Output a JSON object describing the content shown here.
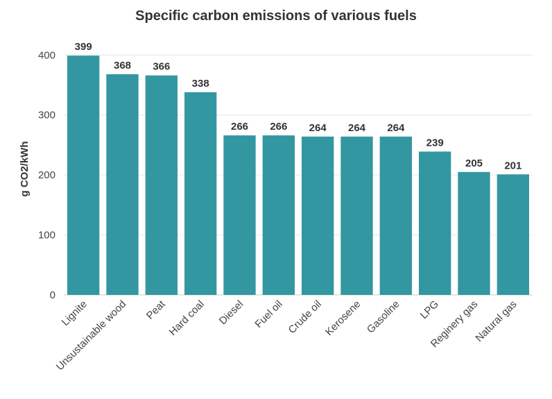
{
  "chart_data": {
    "type": "bar",
    "title": "Specific carbon emissions of various fuels",
    "xlabel": "",
    "ylabel": "g CO2/kWh",
    "ylim": [
      0,
      420
    ],
    "yticks": [
      0,
      100,
      200,
      300,
      400
    ],
    "grid": true,
    "bar_color": "#3397a1",
    "categories": [
      "Lignite",
      "Unsustainable wood",
      "Peat",
      "Hard coal",
      "Diesel",
      "Fuel oil",
      "Crude oil",
      "Kerosene",
      "Gasoline",
      "LPG",
      "Reginery gas",
      "Natural gas"
    ],
    "values": [
      399,
      368,
      366,
      338,
      266,
      266,
      264,
      264,
      264,
      239,
      205,
      201
    ]
  }
}
